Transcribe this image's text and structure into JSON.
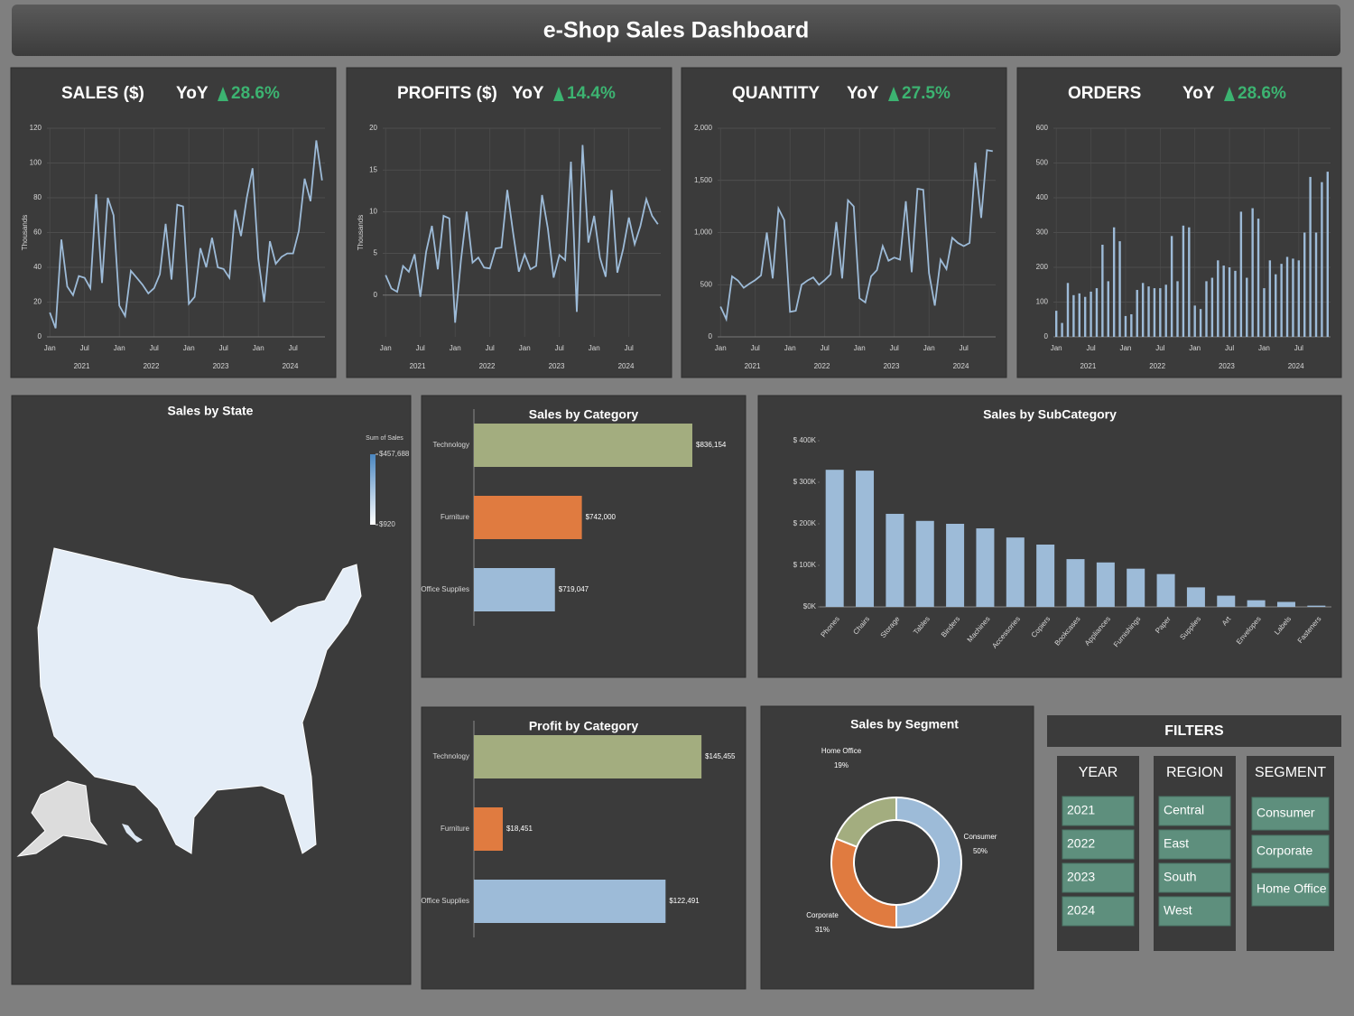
{
  "header": {
    "title": "e-Shop Sales Dashboard"
  },
  "chart_data": [
    {
      "type": "line",
      "title": "SALES ($)",
      "yoy_label": "YoY",
      "yoy": "28.6%",
      "ylabel": "Thousands",
      "categories": [
        "Jan",
        null,
        null,
        null,
        null,
        null,
        "Jul",
        null,
        null,
        null,
        null,
        null,
        "Jan",
        null,
        null,
        null,
        null,
        null,
        "Jul",
        null,
        null,
        null,
        null,
        null,
        "Jan",
        null,
        null,
        null,
        null,
        null,
        "Jul",
        null,
        null,
        null,
        null,
        null,
        "Jan",
        null,
        null,
        null,
        null,
        null,
        "Jul",
        null,
        null,
        null,
        null,
        null
      ],
      "year_labels": [
        "2021",
        "2022",
        "2023",
        "2024"
      ],
      "values": [
        14,
        5,
        56,
        29,
        24,
        35,
        34,
        28,
        82,
        31,
        80,
        70,
        18,
        12,
        38,
        34,
        30,
        25,
        28,
        36,
        65,
        33,
        76,
        75,
        19,
        23,
        51,
        40,
        57,
        40,
        39,
        34,
        73,
        58,
        80,
        97,
        45,
        20,
        55,
        42,
        46,
        48,
        48,
        61,
        91,
        78,
        113,
        90
      ],
      "color": "#9dbbd8",
      "ylim": [
        0,
        120
      ],
      "yticks": [
        0,
        20,
        40,
        60,
        80,
        100,
        120
      ],
      "grid": true
    },
    {
      "type": "line",
      "title": "PROFITS ($)",
      "yoy_label": "YoY",
      "yoy": "14.4%",
      "ylabel": "Thousands",
      "categories": [
        "Jan",
        null,
        null,
        null,
        null,
        null,
        "Jul",
        null,
        null,
        null,
        null,
        null,
        "Jan",
        null,
        null,
        null,
        null,
        null,
        "Jul",
        null,
        null,
        null,
        null,
        null,
        "Jan",
        null,
        null,
        null,
        null,
        null,
        "Jul",
        null,
        null,
        null,
        null,
        null,
        "Jan",
        null,
        null,
        null,
        null,
        null,
        "Jul",
        null,
        null,
        null,
        null,
        null
      ],
      "year_labels": [
        "2021",
        "2022",
        "2023",
        "2024"
      ],
      "values": [
        2.4,
        0.8,
        0.4,
        3.5,
        2.8,
        4.9,
        -0.2,
        5.2,
        8.3,
        3.1,
        9.5,
        9.2,
        -3.3,
        4.1,
        10,
        3.9,
        4.5,
        3.3,
        3.2,
        5.6,
        5.7,
        12.6,
        7.5,
        2.8,
        4.9,
        3.1,
        3.5,
        12,
        8,
        2.1,
        4.8,
        4.2,
        16,
        -2,
        18,
        6.3,
        9.5,
        4.5,
        2.2,
        12.6,
        2.7,
        5.5,
        9.3,
        6.1,
        8.3,
        11.5,
        9.5,
        8.5
      ],
      "color": "#9dbbd8",
      "ylim": [
        -5,
        20
      ],
      "yticks": [
        0,
        5,
        10,
        15,
        20
      ],
      "grid": true
    },
    {
      "type": "line",
      "title": "QUANTITY",
      "yoy_label": "YoY",
      "yoy": "27.5%",
      "categories": [
        "Jan",
        null,
        null,
        null,
        null,
        null,
        "Jul",
        null,
        null,
        null,
        null,
        null,
        "Jan",
        null,
        null,
        null,
        null,
        null,
        "Jul",
        null,
        null,
        null,
        null,
        null,
        "Jan",
        null,
        null,
        null,
        null,
        null,
        "Jul",
        null,
        null,
        null,
        null,
        null,
        "Jan",
        null,
        null,
        null,
        null,
        null,
        "Jul",
        null,
        null,
        null,
        null,
        null
      ],
      "year_labels": [
        "2021",
        "2022",
        "2023",
        "2024"
      ],
      "values": [
        290,
        170,
        580,
        540,
        470,
        510,
        545,
        590,
        1000,
        560,
        1230,
        1120,
        240,
        250,
        500,
        540,
        570,
        500,
        545,
        600,
        1100,
        560,
        1310,
        1250,
        370,
        330,
        580,
        640,
        870,
        730,
        760,
        740,
        1300,
        620,
        1420,
        1410,
        610,
        300,
        740,
        650,
        950,
        900,
        870,
        900,
        1670,
        1140,
        1790,
        1780
      ],
      "color": "#9dbbd8",
      "ylim": [
        0,
        2000
      ],
      "yticks": [
        0,
        500,
        {
          "value": 1000,
          "label": "1,000"
        },
        {
          "value": 1500,
          "label": "1,500"
        },
        {
          "value": 2000,
          "label": "2,000"
        }
      ],
      "grid": true
    },
    {
      "type": "column",
      "title": "ORDERS",
      "yoy_label": "YoY",
      "yoy": "28.6%",
      "categories": [
        "Jan",
        null,
        null,
        null,
        null,
        null,
        "Jul",
        null,
        null,
        null,
        null,
        null,
        "Jan",
        null,
        null,
        null,
        null,
        null,
        "Jul",
        null,
        null,
        null,
        null,
        null,
        "Jan",
        null,
        null,
        null,
        null,
        null,
        "Jul",
        null,
        null,
        null,
        null,
        null,
        "Jan",
        null,
        null,
        null,
        null,
        null,
        "Jul",
        null,
        null,
        null,
        null,
        null
      ],
      "year_labels": [
        "2021",
        "2022",
        "2023",
        "2024"
      ],
      "values": [
        75,
        40,
        155,
        120,
        125,
        115,
        130,
        140,
        265,
        160,
        315,
        275,
        60,
        65,
        135,
        155,
        145,
        140,
        140,
        150,
        290,
        160,
        320,
        315,
        90,
        80,
        160,
        170,
        220,
        205,
        200,
        190,
        360,
        170,
        370,
        340,
        140,
        220,
        180,
        210,
        230,
        225,
        220,
        300,
        460,
        300,
        445,
        475
      ],
      "color": "#9dbbd8",
      "ylim": [
        0,
        600
      ],
      "yticks": [
        0,
        100,
        200,
        300,
        400,
        500,
        600
      ],
      "grid": true
    },
    {
      "type": "map",
      "title": "Sales by State",
      "legend_title": "Sum of Sales",
      "colorticks": [
        {
          "value": 920,
          "label": "$920"
        },
        {
          "value": 457688,
          "label": "$457,688"
        }
      ],
      "colors": [
        "#ffffff",
        "#4a86c0"
      ]
    },
    {
      "type": "hbar",
      "title": "Sales by Category",
      "categories": [
        "Technology",
        "Furniture",
        "Office Supplies"
      ],
      "values": [
        836154,
        742000,
        719047
      ],
      "value_labels": [
        "$836,154",
        "$742,000",
        "$719,047"
      ],
      "colors": [
        "#a3ad7f",
        "#e07b40",
        "#9dbbd8"
      ],
      "xlim": [
        650000,
        850000
      ]
    },
    {
      "type": "bar",
      "title": "Sales by SubCategory",
      "categories": [
        "Phones",
        "Chairs",
        "Storage",
        "Tables",
        "Binders",
        "Machines",
        "Accessories",
        "Copiers",
        "Bookcases",
        "Appliances",
        "Furnishings",
        "Paper",
        "Supplies",
        "Art",
        "Envelopes",
        "Labels",
        "Fasteners"
      ],
      "values": [
        330000,
        328000,
        224000,
        207000,
        200000,
        189000,
        167000,
        150000,
        115000,
        107000,
        92000,
        79000,
        47000,
        27000,
        16000,
        12000,
        3000
      ],
      "color": "#9dbbd8",
      "ylim": [
        0,
        400000
      ],
      "yticks": [
        {
          "value": 0,
          "label": "$0K"
        },
        {
          "value": 100000,
          "label": "$ 100K"
        },
        {
          "value": 200000,
          "label": "$ 200K"
        },
        {
          "value": 300000,
          "label": "$ 300K"
        },
        {
          "value": 400000,
          "label": "$ 400K"
        }
      ]
    },
    {
      "type": "hbar",
      "title": "Profit by Category",
      "categories": [
        "Technology",
        "Furniture",
        "Office Supplies"
      ],
      "values": [
        145455,
        18451,
        122491
      ],
      "value_labels": [
        "$145,455",
        "$18,451",
        "$122,491"
      ],
      "colors": [
        "#a3ad7f",
        "#e07b40",
        "#9dbbd8"
      ],
      "xlim": [
        0,
        150000
      ]
    },
    {
      "type": "donut",
      "title": "Sales by Segment",
      "categories": [
        "Consumer",
        "Corporate",
        "Home Office"
      ],
      "values": [
        50,
        31,
        19
      ],
      "value_labels": [
        "50%",
        "31%",
        "19%"
      ],
      "colors": [
        "#9dbbd8",
        "#e07b40",
        "#a3ad7f"
      ]
    }
  ],
  "filters": {
    "title": "FILTERS",
    "groups": [
      {
        "title": "YEAR",
        "options": [
          "2021",
          "2022",
          "2023",
          "2024"
        ]
      },
      {
        "title": "REGION",
        "options": [
          "Central",
          "East",
          "South",
          "West"
        ]
      },
      {
        "title": "SEGMENT",
        "options": [
          "Consumer",
          "Corporate",
          "Home Office"
        ]
      }
    ]
  }
}
